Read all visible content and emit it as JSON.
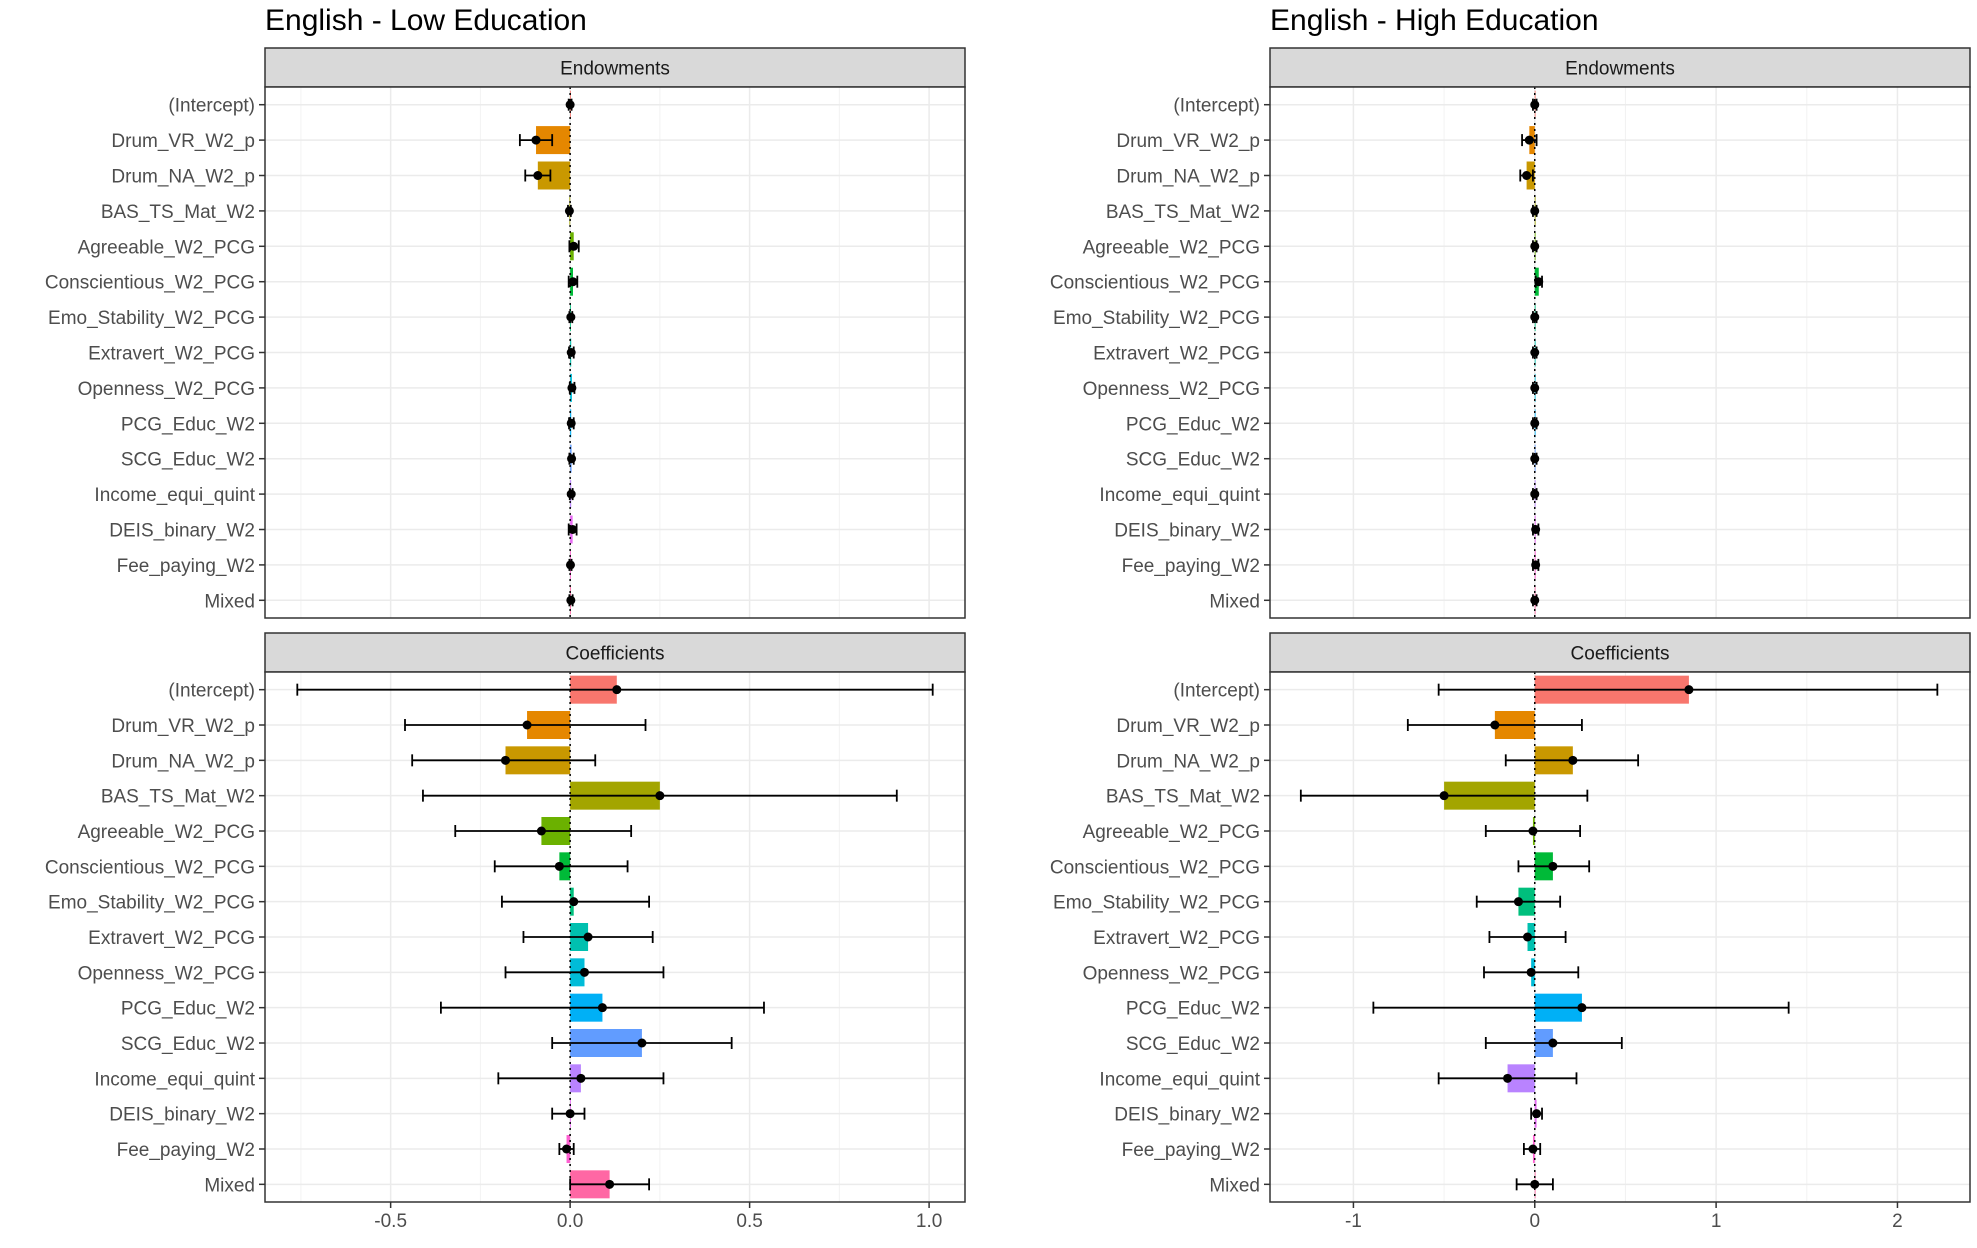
{
  "chart_data": [
    {
      "type": "bar",
      "title": "English - Low Education",
      "xlabel": "",
      "ylabel": "",
      "orientation": "horizontal",
      "xlim": [
        -0.85,
        1.1
      ],
      "x_ticks": [
        -0.5,
        0,
        0.5,
        1
      ],
      "x_tick_labels": [
        "-0.5",
        "0.0",
        "0.5",
        "1.0"
      ],
      "grid": true,
      "categories": [
        "(Intercept)",
        "Drum_VR_W2_p",
        "Drum_NA_W2_p",
        "BAS_TS_Mat_W2",
        "Agreeable_W2_PCG",
        "Conscientious_W2_PCG",
        "Emo_Stability_W2_PCG",
        "Extravert_W2_PCG",
        "Openness_W2_PCG",
        "PCG_Educ_W2",
        "SCG_Educ_W2",
        "Income_equi_quint",
        "DEIS_binary_W2",
        "Fee_paying_W2",
        "Mixed"
      ],
      "panels": [
        {
          "name": "Endowments",
          "values": [
            0.0,
            -0.095,
            -0.09,
            -0.002,
            0.01,
            0.008,
            0.002,
            0.003,
            0.005,
            0.003,
            0.004,
            0.003,
            0.007,
            0.001,
            0.002
          ],
          "ci_low": [
            -0.004,
            -0.14,
            -0.125,
            -0.006,
            -0.002,
            -0.004,
            -0.002,
            -0.003,
            -0.001,
            -0.003,
            -0.002,
            -0.001,
            -0.004,
            -0.002,
            -0.002
          ],
          "ci_high": [
            0.004,
            -0.05,
            -0.055,
            0.002,
            0.024,
            0.02,
            0.006,
            0.01,
            0.012,
            0.01,
            0.01,
            0.007,
            0.018,
            0.004,
            0.007
          ]
        },
        {
          "name": "Coefficients",
          "values": [
            0.13,
            -0.12,
            -0.18,
            0.25,
            -0.08,
            -0.03,
            0.01,
            0.05,
            0.04,
            0.09,
            0.2,
            0.03,
            0.0,
            -0.01,
            0.11
          ],
          "ci_low": [
            -0.76,
            -0.46,
            -0.44,
            -0.41,
            -0.32,
            -0.21,
            -0.19,
            -0.13,
            -0.18,
            -0.36,
            -0.05,
            -0.2,
            -0.05,
            -0.03,
            0.0
          ],
          "ci_high": [
            1.01,
            0.21,
            0.07,
            0.91,
            0.17,
            0.16,
            0.22,
            0.23,
            0.26,
            0.54,
            0.45,
            0.26,
            0.04,
            0.01,
            0.22
          ]
        }
      ]
    },
    {
      "type": "bar",
      "title": "English - High Education",
      "xlabel": "",
      "ylabel": "",
      "orientation": "horizontal",
      "xlim": [
        -1.46,
        2.4
      ],
      "x_ticks": [
        -1,
        0,
        1,
        2
      ],
      "x_tick_labels": [
        "-1",
        "0",
        "1",
        "2"
      ],
      "grid": true,
      "categories": [
        "(Intercept)",
        "Drum_VR_W2_p",
        "Drum_NA_W2_p",
        "BAS_TS_Mat_W2",
        "Agreeable_W2_PCG",
        "Conscientious_W2_PCG",
        "Emo_Stability_W2_PCG",
        "Extravert_W2_PCG",
        "Openness_W2_PCG",
        "PCG_Educ_W2",
        "SCG_Educ_W2",
        "Income_equi_quint",
        "DEIS_binary_W2",
        "Fee_paying_W2",
        "Mixed"
      ],
      "panels": [
        {
          "name": "Endowments",
          "values": [
            0.0,
            -0.03,
            -0.045,
            0.0,
            0.0,
            0.022,
            0.0,
            0.0,
            0.0,
            0.0,
            0.0,
            0.0,
            0.005,
            0.005,
            0.0
          ],
          "ci_low": [
            -0.01,
            -0.07,
            -0.08,
            -0.01,
            -0.01,
            0.005,
            -0.01,
            -0.01,
            -0.01,
            -0.01,
            -0.01,
            -0.01,
            -0.01,
            -0.01,
            -0.01
          ],
          "ci_high": [
            0.01,
            0.01,
            -0.01,
            0.01,
            0.01,
            0.04,
            0.01,
            0.01,
            0.01,
            0.01,
            0.01,
            0.01,
            0.02,
            0.02,
            0.01
          ]
        },
        {
          "name": "Coefficients",
          "values": [
            0.85,
            -0.22,
            0.21,
            -0.5,
            -0.01,
            0.1,
            -0.09,
            -0.04,
            -0.02,
            0.26,
            0.1,
            -0.15,
            0.01,
            -0.01,
            0.0
          ],
          "ci_low": [
            -0.53,
            -0.7,
            -0.16,
            -1.29,
            -0.27,
            -0.09,
            -0.32,
            -0.25,
            -0.28,
            -0.89,
            -0.27,
            -0.53,
            -0.02,
            -0.06,
            -0.1
          ],
          "ci_high": [
            2.22,
            0.26,
            0.57,
            0.29,
            0.25,
            0.3,
            0.14,
            0.17,
            0.24,
            1.4,
            0.48,
            0.23,
            0.04,
            0.03,
            0.1
          ]
        }
      ]
    }
  ],
  "colors": [
    "#F8766D",
    "#E58700",
    "#C99800",
    "#A3A500",
    "#6BB100",
    "#00BA38",
    "#00BF7D",
    "#00C0AF",
    "#00BCD8",
    "#00B0F6",
    "#619CFF",
    "#B983FF",
    "#E76BF3",
    "#FD61D1",
    "#FF67A4"
  ]
}
